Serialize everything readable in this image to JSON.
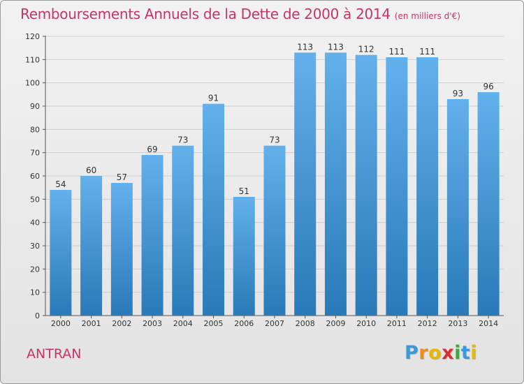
{
  "chart_data": {
    "type": "bar",
    "title": "Remboursements Annuels de la Dette de 2000 à 2014",
    "unit_note": "(en milliers d'€)",
    "categories": [
      "2000",
      "2001",
      "2002",
      "2003",
      "2004",
      "2005",
      "2006",
      "2007",
      "2008",
      "2009",
      "2010",
      "2011",
      "2012",
      "2013",
      "2014"
    ],
    "values": [
      54,
      60,
      57,
      69,
      73,
      91,
      51,
      73,
      113,
      113,
      112,
      111,
      111,
      93,
      96
    ],
    "xlabel": "",
    "ylabel": "",
    "ylim": [
      0,
      120
    ],
    "yticks": [
      0,
      10,
      20,
      30,
      40,
      50,
      60,
      70,
      80,
      90,
      100,
      110,
      120
    ],
    "grid": true,
    "bar_color_top": "#62b1ec",
    "bar_color_bottom": "#2a79b8"
  },
  "commune": "ANTRAN",
  "logo": {
    "letters": [
      "P",
      "r",
      "o",
      "x",
      "i",
      "t",
      "i"
    ],
    "colors": [
      "#3a9ad9",
      "#f08a1c",
      "#e6b800",
      "#d7312f",
      "#41a83e",
      "#3a9ad9",
      "#e6b800"
    ]
  }
}
